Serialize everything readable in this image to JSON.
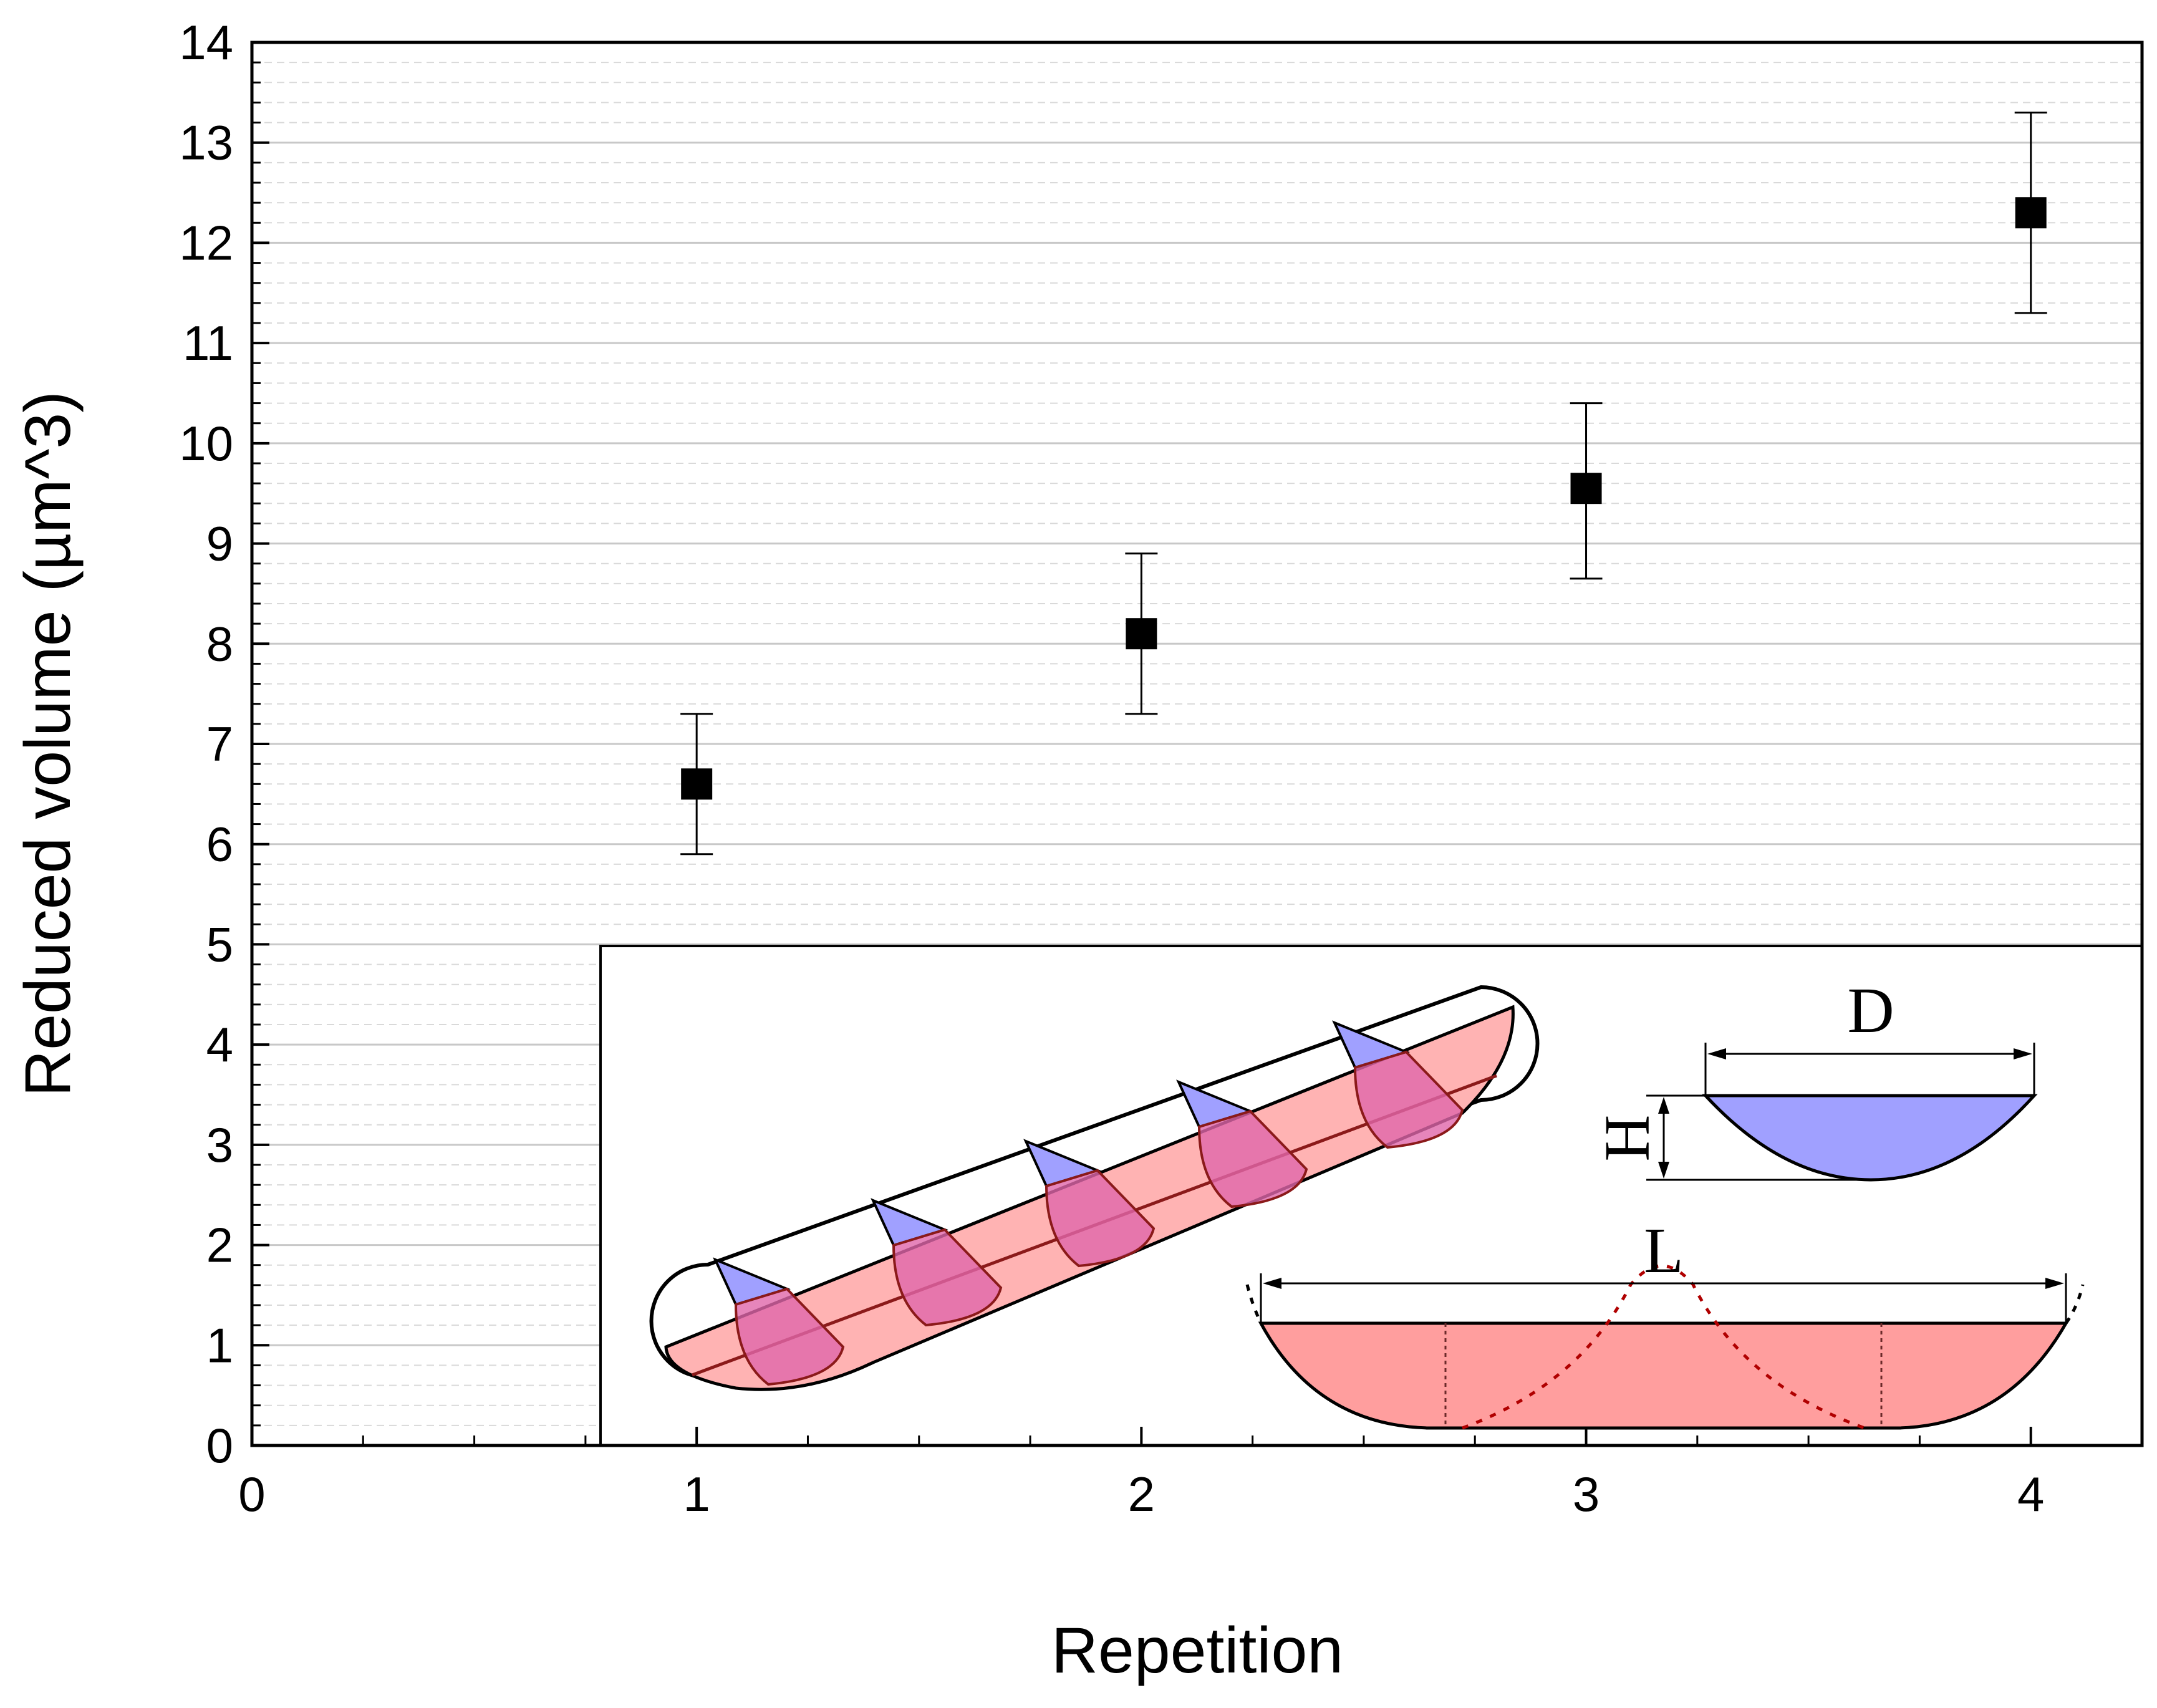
{
  "chart_data": {
    "type": "scatter",
    "title": "",
    "xlabel": "Repetition",
    "ylabel": "Reduced volume (µm^3)",
    "xlim": [
      0,
      4.25
    ],
    "ylim": [
      0,
      14
    ],
    "x_ticks": [
      "0",
      "1",
      "2",
      "3",
      "4"
    ],
    "y_ticks": [
      "0",
      "1",
      "2",
      "3",
      "4",
      "5",
      "6",
      "7",
      "8",
      "9",
      "10",
      "11",
      "12",
      "13",
      "14"
    ],
    "grid": "horizontal",
    "legend": "none",
    "series": [
      {
        "name": "Reduced volume",
        "marker": "square",
        "color": "#000000",
        "x": [
          1,
          2,
          3,
          4
        ],
        "y": [
          6.6,
          8.1,
          9.55,
          12.3
        ],
        "error_upper": [
          7.3,
          8.9,
          10.4,
          13.3
        ],
        "error_lower": [
          5.9,
          7.3,
          8.65,
          11.3
        ]
      }
    ]
  },
  "inset": {
    "labels": {
      "diameter": "D",
      "height": "H",
      "length": "L"
    },
    "colors": {
      "blue_fill": "#a0a0ff",
      "red_fill": "#ff9e9e",
      "red_dark": "#b00000"
    }
  }
}
